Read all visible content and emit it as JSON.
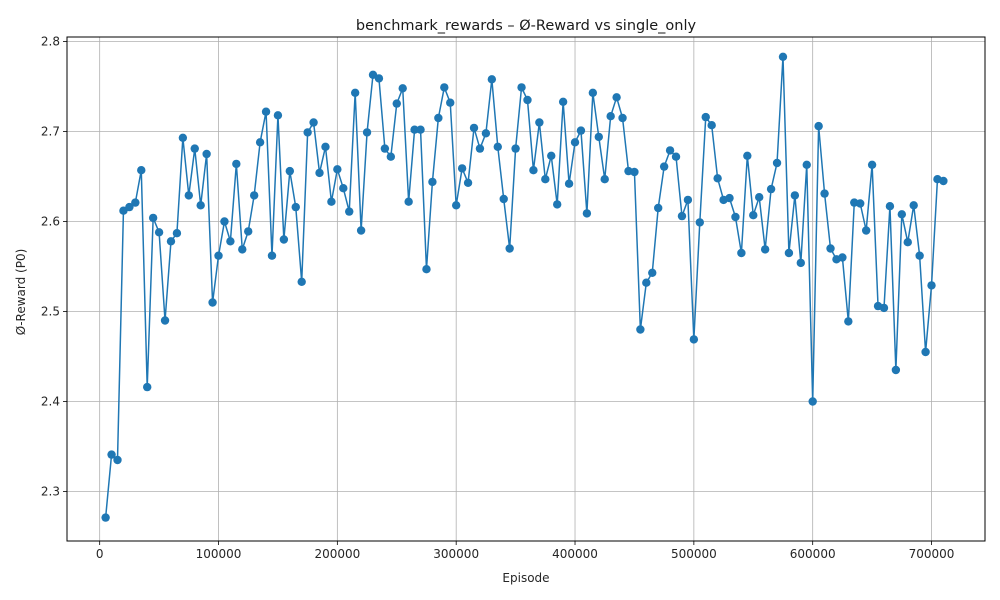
{
  "chart_data": {
    "type": "line",
    "title": "benchmark_rewards – Ø-Reward vs single_only",
    "xlabel": "Episode",
    "ylabel": "Ø-Reward (P0)",
    "xlim": [
      -27500,
      745000
    ],
    "ylim": [
      2.245,
      2.805
    ],
    "grid": true,
    "xticks": [
      0,
      100000,
      200000,
      300000,
      400000,
      500000,
      600000,
      700000
    ],
    "xtick_labels": [
      "0",
      "100000",
      "200000",
      "300000",
      "400000",
      "500000",
      "600000",
      "700000"
    ],
    "yticks": [
      2.3,
      2.4,
      2.5,
      2.6,
      2.7,
      2.8
    ],
    "ytick_labels": [
      "2.3",
      "2.4",
      "2.5",
      "2.6",
      "2.7",
      "2.8"
    ],
    "series": [
      {
        "color": "#1f77b4",
        "marker": "circle",
        "x": [
          5000,
          10000,
          15000,
          20000,
          25000,
          30000,
          35000,
          40000,
          45000,
          50000,
          55000,
          60000,
          65000,
          70000,
          75000,
          80000,
          85000,
          90000,
          95000,
          100000,
          105000,
          110000,
          115000,
          120000,
          125000,
          130000,
          135000,
          140000,
          145000,
          150000,
          155000,
          160000,
          165000,
          170000,
          175000,
          180000,
          185000,
          190000,
          195000,
          200000,
          205000,
          210000,
          215000,
          220000,
          225000,
          230000,
          235000,
          240000,
          245000,
          250000,
          255000,
          260000,
          265000,
          270000,
          275000,
          280000,
          285000,
          290000,
          295000,
          300000,
          305000,
          310000,
          315000,
          320000,
          325000,
          330000,
          335000,
          340000,
          345000,
          350000,
          355000,
          360000,
          365000,
          370000,
          375000,
          380000,
          385000,
          390000,
          395000,
          400000,
          405000,
          410000,
          415000,
          420000,
          425000,
          430000,
          435000,
          440000,
          445000,
          450000,
          455000,
          460000,
          465000,
          470000,
          475000,
          480000,
          485000,
          490000,
          495000,
          500000,
          505000,
          510000,
          515000,
          520000,
          525000,
          530000,
          535000,
          540000,
          545000,
          550000,
          555000,
          560000,
          565000,
          570000,
          575000,
          580000,
          585000,
          590000,
          595000,
          600000,
          605000,
          610000,
          615000,
          620000,
          625000,
          630000,
          635000,
          640000,
          645000,
          650000,
          655000,
          660000,
          665000,
          670000,
          675000,
          680000,
          685000,
          690000,
          695000,
          700000,
          705000,
          710000
        ],
        "values": [
          2.271,
          2.341,
          2.335,
          2.612,
          2.616,
          2.621,
          2.657,
          2.416,
          2.604,
          2.588,
          2.49,
          2.578,
          2.587,
          2.693,
          2.629,
          2.681,
          2.618,
          2.675,
          2.51,
          2.562,
          2.6,
          2.578,
          2.664,
          2.569,
          2.589,
          2.629,
          2.688,
          2.722,
          2.562,
          2.718,
          2.58,
          2.656,
          2.616,
          2.533,
          2.699,
          2.71,
          2.654,
          2.683,
          2.622,
          2.658,
          2.637,
          2.611,
          2.743,
          2.59,
          2.699,
          2.763,
          2.759,
          2.681,
          2.672,
          2.731,
          2.748,
          2.622,
          2.702,
          2.702,
          2.547,
          2.644,
          2.715,
          2.749,
          2.732,
          2.618,
          2.659,
          2.643,
          2.704,
          2.681,
          2.698,
          2.758,
          2.683,
          2.625,
          2.57,
          2.681,
          2.749,
          2.735,
          2.657,
          2.71,
          2.647,
          2.673,
          2.619,
          2.733,
          2.642,
          2.688,
          2.701,
          2.609,
          2.743,
          2.694,
          2.647,
          2.717,
          2.738,
          2.715,
          2.656,
          2.655,
          2.48,
          2.532,
          2.543,
          2.615,
          2.661,
          2.679,
          2.672,
          2.606,
          2.624,
          2.469,
          2.599,
          2.716,
          2.707,
          2.648,
          2.624,
          2.626,
          2.605,
          2.565,
          2.673,
          2.607,
          2.627,
          2.569,
          2.636,
          2.665,
          2.783,
          2.565,
          2.629,
          2.554,
          2.663,
          2.4,
          2.706,
          2.631,
          2.57,
          2.558,
          2.56,
          2.489,
          2.621,
          2.62,
          2.59,
          2.663,
          2.506,
          2.504,
          2.617,
          2.435,
          2.608,
          2.577,
          2.618,
          2.562,
          2.455,
          2.529,
          2.647,
          2.645
        ]
      }
    ]
  }
}
